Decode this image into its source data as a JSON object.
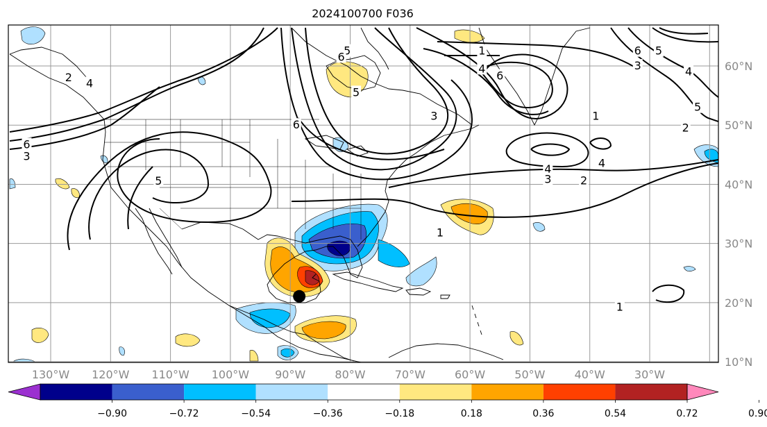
{
  "title": "2024100700 F036",
  "map": {
    "projection": "lat-lon",
    "lon_range": [
      "135°W",
      "20°W"
    ],
    "lat_range": [
      "8°N",
      "65°N"
    ],
    "grid_lines": true,
    "storm_marker": {
      "lon": -88.5,
      "lat": 22.0
    }
  },
  "lon_labels": [
    "130°W",
    "120°W",
    "110°W",
    "100°W",
    "90°W",
    "80°W",
    "70°W",
    "60°W",
    "50°W",
    "40°W",
    "30°W"
  ],
  "lat_labels": [
    "60°N",
    "50°N",
    "40°N",
    "30°N",
    "20°N",
    "10°N"
  ],
  "contour_labels": [
    {
      "text": "1",
      "lon": -58,
      "lat": 62.5
    },
    {
      "text": "4",
      "lon": -58,
      "lat": 59.5
    },
    {
      "text": "6",
      "lon": -55,
      "lat": 58.3
    },
    {
      "text": "6",
      "lon": -32,
      "lat": 62.5
    },
    {
      "text": "5",
      "lon": -28.5,
      "lat": 62.5
    },
    {
      "text": "3",
      "lon": -32,
      "lat": 60
    },
    {
      "text": "4",
      "lon": -23.5,
      "lat": 59
    },
    {
      "text": "5",
      "lon": -22,
      "lat": 53
    },
    {
      "text": "1",
      "lon": -39,
      "lat": 51.5
    },
    {
      "text": "2",
      "lon": -24,
      "lat": 49.5
    },
    {
      "text": "2",
      "lon": -127,
      "lat": 58
    },
    {
      "text": "4",
      "lon": -123.5,
      "lat": 57
    },
    {
      "text": "6",
      "lon": -89,
      "lat": 50
    },
    {
      "text": "5",
      "lon": -79,
      "lat": 55.5
    },
    {
      "text": "5",
      "lon": -80.5,
      "lat": 62.5
    },
    {
      "text": "6",
      "lon": -81.5,
      "lat": 61.5
    },
    {
      "text": "3",
      "lon": -66,
      "lat": 51.5
    },
    {
      "text": "6",
      "lon": -134,
      "lat": 46.7
    },
    {
      "text": "3",
      "lon": -134,
      "lat": 44.7
    },
    {
      "text": "5",
      "lon": -112,
      "lat": 40.5
    },
    {
      "text": "4",
      "lon": -47,
      "lat": 42.5
    },
    {
      "text": "4",
      "lon": -38,
      "lat": 43.5
    },
    {
      "text": "3",
      "lon": -47,
      "lat": 40.8
    },
    {
      "text": "2",
      "lon": -41,
      "lat": 40.6
    },
    {
      "text": "1",
      "lon": -65,
      "lat": 31.8
    },
    {
      "text": "1",
      "lon": -35,
      "lat": 19.2
    }
  ],
  "colorbar": {
    "ticks": [
      "−0.90",
      "−0.72",
      "−0.54",
      "−0.36",
      "−0.18",
      "0.18",
      "0.36",
      "0.54",
      "0.72",
      "0.90"
    ],
    "colors": [
      "#9b30d0",
      "#00008b",
      "#3a5fcd",
      "#00bfff",
      "#b0e0ff",
      "#ffffff",
      "#ffe880",
      "#ffa500",
      "#ff4000",
      "#b22222",
      "#ff88bb"
    ]
  },
  "shading_colors": {
    "neg_1": "#b0e0ff",
    "neg_2": "#00bfff",
    "neg_3": "#3a5fcd",
    "neg_4": "#00008b",
    "pos_1": "#ffe880",
    "pos_2": "#ffa500",
    "pos_3": "#ff4000",
    "pos_4": "#b22222"
  }
}
